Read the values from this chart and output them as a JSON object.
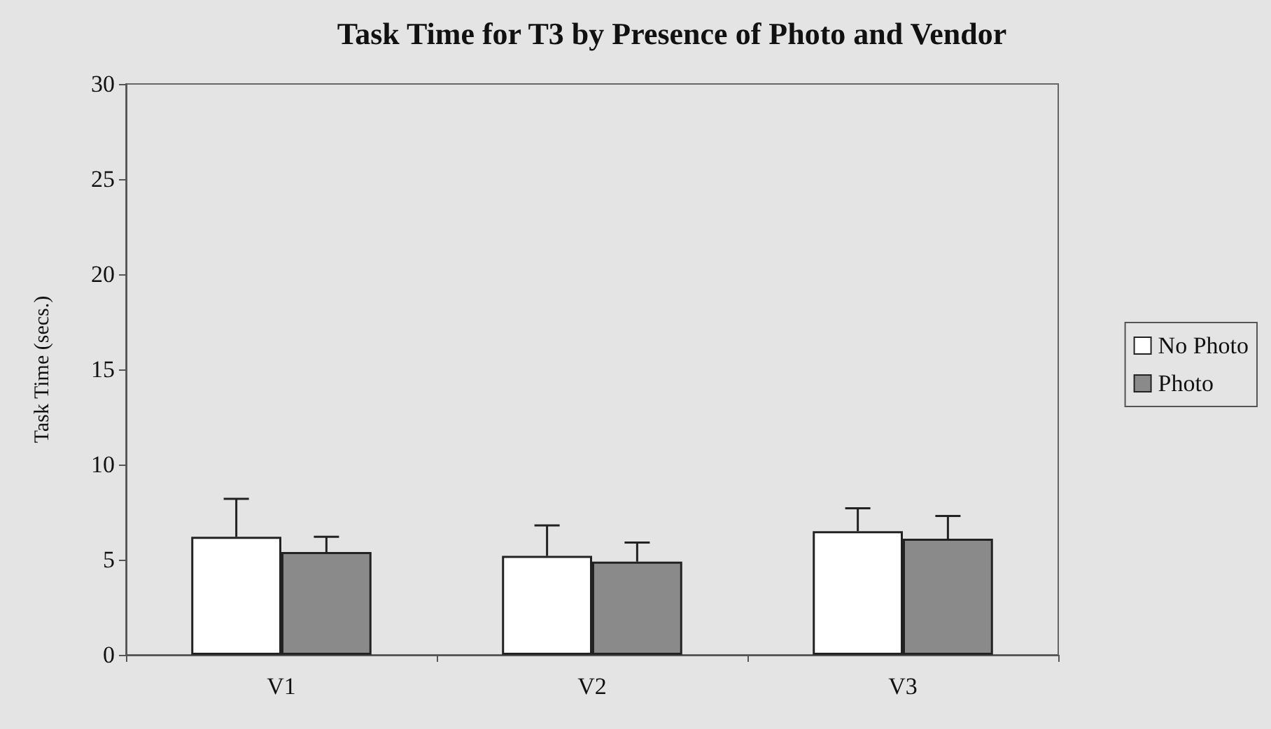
{
  "chart_data": {
    "type": "bar",
    "title": "Task Time for T3 by Presence of Photo and Vendor",
    "ylabel": "Task Time (secs.)",
    "categories": [
      "V1",
      "V2",
      "V3"
    ],
    "series": [
      {
        "name": "No Photo",
        "color": "#ffffff",
        "values": [
          6.2,
          5.2,
          6.5
        ],
        "errors": [
          [
            6.2,
            8.2
          ],
          [
            5.2,
            6.8
          ],
          [
            6.5,
            7.7
          ]
        ]
      },
      {
        "name": "Photo",
        "color": "#8a8a8a",
        "values": [
          5.4,
          4.9,
          6.1
        ],
        "errors": [
          [
            5.4,
            6.2
          ],
          [
            4.9,
            5.9
          ],
          [
            6.1,
            7.3
          ]
        ]
      }
    ],
    "ylim": [
      0,
      30
    ],
    "yticks": [
      0,
      5,
      10,
      15,
      20,
      25,
      30
    ],
    "grid": false,
    "legend": "right"
  }
}
